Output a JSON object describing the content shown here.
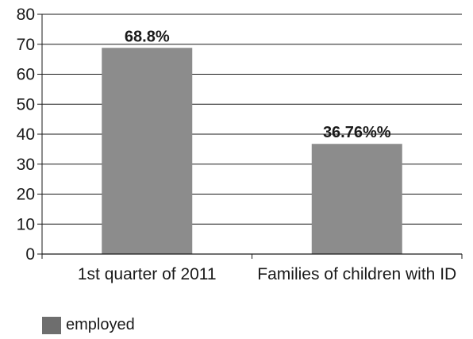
{
  "chart_data": {
    "type": "bar",
    "categories": [
      "1st quarter of 2011",
      "Families of children with ID"
    ],
    "series": [
      {
        "name": "employed",
        "values": [
          68.8,
          36.76
        ],
        "data_labels": [
          "68.8%",
          "36.76%%"
        ]
      }
    ],
    "title": "",
    "xlabel": "",
    "ylabel": "",
    "ylim": [
      0,
      80
    ],
    "yticks": [
      0,
      10,
      20,
      30,
      40,
      50,
      60,
      70,
      80
    ],
    "grid": true,
    "legend_position": "bottom-left",
    "bar_color": "#8c8c8c",
    "legend_swatch_color": "#6e6e6e",
    "grid_color": "#1a1a1a"
  }
}
